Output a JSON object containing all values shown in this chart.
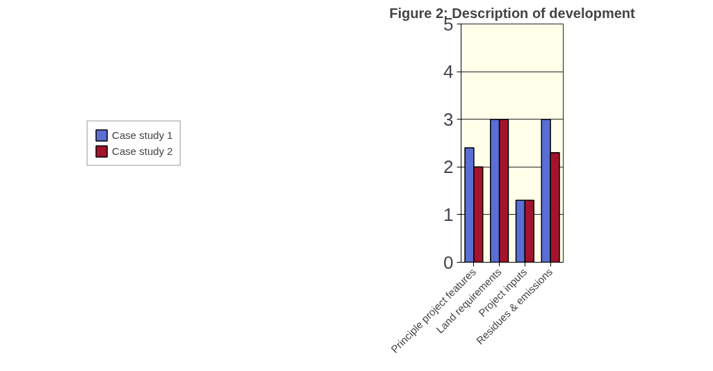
{
  "chart_data": {
    "type": "bar",
    "title": "Figure 2: Description of development",
    "categories": [
      "Principle project features",
      "Land requirements",
      "Project inputs",
      "Residues & emissions"
    ],
    "series": [
      {
        "name": "Case study 1",
        "color": "#5a6ed4",
        "values": [
          2.4,
          3,
          1.3,
          3
        ]
      },
      {
        "name": "Case study 2",
        "color": "#a3142c",
        "values": [
          2,
          3,
          1.3,
          2.3
        ]
      }
    ],
    "ylim": [
      0,
      5
    ],
    "yticks": [
      0,
      1,
      2,
      3,
      4,
      5
    ],
    "grid": "y",
    "legend": "left"
  }
}
